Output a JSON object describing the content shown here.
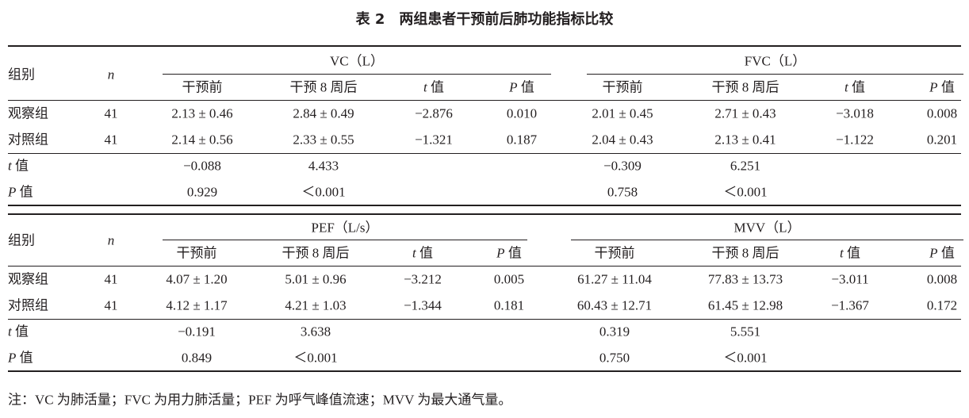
{
  "title": "表 2　两组患者干预前后肺功能指标比较",
  "tables": [
    {
      "group_label": "组别",
      "n_label": "n",
      "blocks": [
        {
          "title": "VC（L）",
          "columns": [
            "干预前",
            "干预 8 周后",
            {
              "italic": "t",
              "text": " 值"
            },
            {
              "italic": "P",
              "text": " 值"
            }
          ]
        },
        {
          "title": "FVC（L）",
          "columns": [
            "干预前",
            "干预 8 周后",
            {
              "italic": "t",
              "text": " 值"
            },
            {
              "italic": "P",
              "text": " 值"
            }
          ]
        }
      ],
      "rows": [
        {
          "label": "观察组",
          "n": "41",
          "cells": [
            "2.13 ± 0.46",
            "2.84 ± 0.49",
            "−2.876",
            "0.010",
            "2.01 ± 0.45",
            "2.71 ± 0.43",
            "−3.018",
            "0.008"
          ]
        },
        {
          "label": "对照组",
          "n": "41",
          "cells": [
            "2.14 ± 0.56",
            "2.33 ± 0.55",
            "−1.321",
            "0.187",
            "2.04 ± 0.43",
            "2.13 ± 0.41",
            "−1.122",
            "0.201"
          ]
        }
      ],
      "stats": [
        {
          "label": {
            "italic": "t",
            "text": " 值"
          },
          "cells": [
            "−0.088",
            "4.433",
            "−0.309",
            "6.251"
          ]
        },
        {
          "label": {
            "italic": "P",
            "text": " 值"
          },
          "cells": [
            "0.929",
            "＜0.001",
            "0.758",
            "＜0.001"
          ]
        }
      ]
    },
    {
      "group_label": "组别",
      "n_label": "n",
      "blocks": [
        {
          "title": "PEF（L/s）",
          "columns": [
            "干预前",
            "干预 8 周后",
            {
              "italic": "t",
              "text": " 值"
            },
            {
              "italic": "P",
              "text": " 值"
            }
          ]
        },
        {
          "title": "MVV（L）",
          "columns": [
            "干预前",
            "干预 8 周后",
            {
              "italic": "t",
              "text": " 值"
            },
            {
              "italic": "P",
              "text": " 值"
            }
          ]
        }
      ],
      "rows": [
        {
          "label": "观察组",
          "n": "41",
          "cells": [
            "4.07 ± 1.20",
            "5.01 ± 0.96",
            "−3.212",
            "0.005",
            "61.27 ± 11.04",
            "77.83 ± 13.73",
            "−3.011",
            "0.008"
          ]
        },
        {
          "label": "对照组",
          "n": "41",
          "cells": [
            "4.12 ± 1.17",
            "4.21 ± 1.03",
            "−1.344",
            "0.181",
            "60.43 ± 12.71",
            "61.45 ± 12.98",
            "−1.367",
            "0.172"
          ]
        }
      ],
      "stats": [
        {
          "label": {
            "italic": "t",
            "text": " 值"
          },
          "cells": [
            "−0.191",
            "3.638",
            "0.319",
            "5.551"
          ]
        },
        {
          "label": {
            "italic": "P",
            "text": " 值"
          },
          "cells": [
            "0.849",
            "＜0.001",
            "0.750",
            "＜0.001"
          ]
        }
      ]
    }
  ],
  "note": "注：VC 为肺活量；FVC 为用力肺活量；PEF 为呼气峰值流速；MVV 为最大通气量。"
}
